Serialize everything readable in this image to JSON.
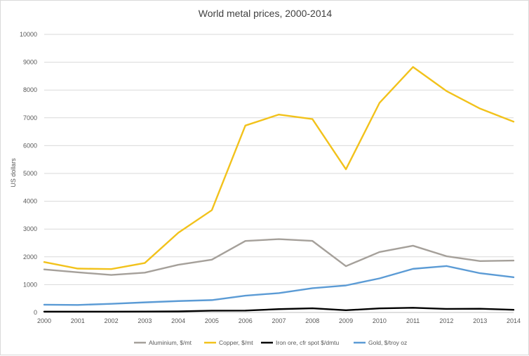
{
  "chart_data": {
    "type": "line",
    "title": "World metal prices, 2000-2014",
    "xlabel": "",
    "ylabel": "US dollars",
    "ylim": [
      0,
      10000
    ],
    "yticks": [
      0,
      1000,
      2000,
      3000,
      4000,
      5000,
      6000,
      7000,
      8000,
      9000,
      10000
    ],
    "grid": true,
    "legend_position": "bottom",
    "x": [
      "2000",
      "2001",
      "2002",
      "2003",
      "2004",
      "2005",
      "2006",
      "2007",
      "2008",
      "2009",
      "2010",
      "2011",
      "2012",
      "2013",
      "2014"
    ],
    "series": [
      {
        "name": "Aluminium, $/mt",
        "color": "#a5a09a",
        "values": [
          1549,
          1444,
          1350,
          1431,
          1716,
          1898,
          2570,
          2638,
          2573,
          1665,
          2173,
          2401,
          2023,
          1847,
          1867
        ]
      },
      {
        "name": "Copper, $/mt",
        "color": "#f2c21b",
        "values": [
          1813,
          1578,
          1560,
          1779,
          2866,
          3679,
          6722,
          7118,
          6956,
          5150,
          7535,
          8828,
          7962,
          7332,
          6863
        ]
      },
      {
        "name": "Iron ore, cfr spot $/dmtu",
        "color": "#000000",
        "values": [
          29,
          30,
          29,
          32,
          38,
          65,
          69,
          120,
          150,
          80,
          146,
          168,
          128,
          135,
          97
        ]
      },
      {
        "name": "Gold, $/troy oz",
        "color": "#5b9bd5",
        "values": [
          279,
          271,
          310,
          363,
          410,
          445,
          604,
          697,
          872,
          972,
          1225,
          1569,
          1670,
          1411,
          1266
        ]
      }
    ]
  }
}
